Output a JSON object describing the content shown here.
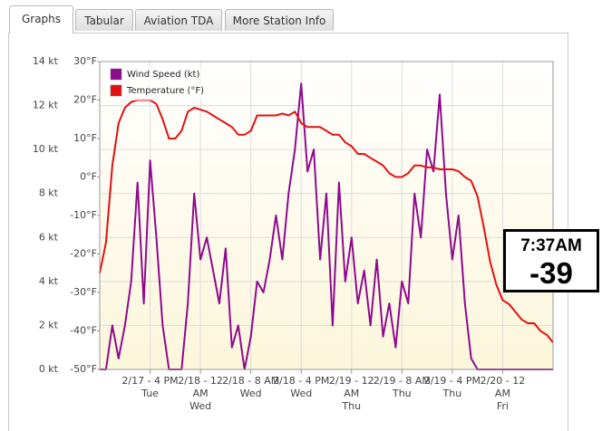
{
  "tabs": [
    "Graphs",
    "Tabular",
    "Aviation TDA",
    "More Station Info"
  ],
  "chart_data": {
    "type": "line",
    "x": [
      0,
      1,
      2,
      3,
      4,
      5,
      6,
      7,
      8,
      9,
      10,
      11,
      12,
      13,
      14,
      15,
      16,
      17,
      18,
      19,
      20,
      21,
      22,
      23,
      24,
      25,
      26,
      27,
      28,
      29,
      30,
      31,
      32,
      33,
      34,
      35,
      36,
      37,
      38,
      39,
      40,
      41,
      42,
      43,
      44,
      45,
      46,
      47,
      48,
      49,
      50,
      51,
      52,
      53,
      54,
      55,
      56,
      57,
      58,
      59,
      60,
      61,
      62,
      63,
      64,
      65,
      66,
      67,
      68,
      69,
      70,
      71,
      72
    ],
    "xlim": [
      0,
      72
    ],
    "xticks": [
      {
        "value": 8,
        "label": "2/17 - 4 PM\nTue"
      },
      {
        "value": 16,
        "label": "2/18 - 12\nAM\nWed"
      },
      {
        "value": 24,
        "label": "2/18 - 8 AM\nWed"
      },
      {
        "value": 32,
        "label": "2/18 - 4 PM\nWed"
      },
      {
        "value": 40,
        "label": "2/19 - 12\nAM\nThu"
      },
      {
        "value": 48,
        "label": "2/19 - 8 AM\nThu"
      },
      {
        "value": 56,
        "label": "2/19 - 4 PM\nThu"
      },
      {
        "value": 64,
        "label": "2/20 - 12\nAM\nFri"
      }
    ],
    "ylim": [
      0,
      14
    ],
    "yticks": [
      {
        "value": 0,
        "label": "0 kt"
      },
      {
        "value": 2,
        "label": "2 kt"
      },
      {
        "value": 4,
        "label": "4 kt"
      },
      {
        "value": 6,
        "label": "6 kt"
      },
      {
        "value": 8,
        "label": "8 kt"
      },
      {
        "value": 10,
        "label": "10 kt"
      },
      {
        "value": 12,
        "label": "12 kt"
      },
      {
        "value": 14,
        "label": "14 kt"
      }
    ],
    "y2lim": [
      -50,
      30
    ],
    "y2ticks": [
      {
        "value": -50,
        "label": "-50°F"
      },
      {
        "value": -40,
        "label": "-40°F"
      },
      {
        "value": -30,
        "label": "-30°F"
      },
      {
        "value": -20,
        "label": "-20°F"
      },
      {
        "value": -10,
        "label": "-10°F"
      },
      {
        "value": 0,
        "label": "0°F"
      },
      {
        "value": 10,
        "label": "10°F"
      },
      {
        "value": 20,
        "label": "20°F"
      },
      {
        "value": 30,
        "label": "30°F"
      }
    ],
    "grid": true,
    "legend": "top-left",
    "series": [
      {
        "name": "Wind Speed (kt)",
        "color": "#8e0a8e",
        "values": [
          0,
          0,
          2,
          0.5,
          2,
          4,
          8.5,
          3,
          9.5,
          6,
          2,
          0,
          0,
          0,
          3,
          8,
          5,
          6,
          4.5,
          3,
          5.5,
          1,
          2,
          0,
          1.5,
          4,
          3.5,
          5,
          7,
          5,
          8,
          10,
          13,
          9,
          10,
          5,
          8,
          2,
          8.5,
          4,
          6,
          3,
          4.5,
          2,
          5,
          1.5,
          3,
          1,
          4,
          3,
          8,
          6,
          10,
          9,
          12.5,
          8,
          5,
          7,
          3,
          0.5,
          0,
          0,
          0,
          0,
          0,
          0,
          0,
          0,
          0,
          0,
          0,
          0,
          0
        ]
      },
      {
        "name": "Temperature (°F)",
        "color": "#e31010",
        "axis": "y2",
        "values": [
          -25,
          -17,
          3,
          14,
          18,
          19.5,
          20,
          20,
          20,
          19,
          15,
          10,
          10,
          12,
          17,
          18,
          17.5,
          17,
          16,
          15,
          14,
          13,
          11,
          11,
          12,
          16,
          16,
          16,
          16,
          16.5,
          16,
          17,
          14,
          13,
          13,
          13,
          12,
          11,
          11,
          9,
          8,
          6,
          6,
          5,
          4,
          3,
          1,
          0,
          0,
          1,
          3,
          3,
          2.5,
          2.5,
          2,
          2,
          2,
          1.5,
          0,
          -1,
          -5,
          -13,
          -22,
          -28,
          -32,
          -33,
          -35,
          -37,
          -38,
          -38,
          -40,
          -41,
          -43
        ]
      }
    ]
  },
  "readout": {
    "time": "7:37AM",
    "value": -39
  }
}
